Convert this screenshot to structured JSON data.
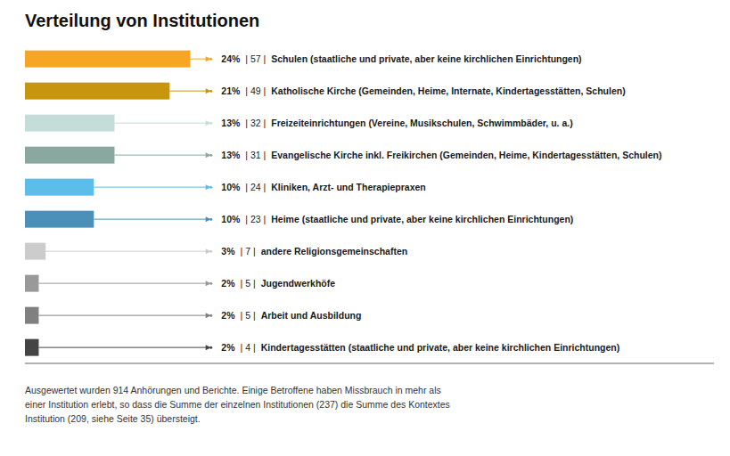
{
  "chart_data": {
    "type": "bar",
    "orientation": "horizontal",
    "title": "Verteilung von Institutionen",
    "categories": [
      "Schulen (staatliche und private, aber keine kirchlichen Einrichtungen)",
      "Katholische Kirche (Gemeinden, Heime, Internate, Kindertagesstätten, Schulen)",
      "Freizeiteinrichtungen (Vereine, Musikschulen, Schwimmbäder, u. a.)",
      "Evangelische Kirche inkl. Freikirchen (Gemeinden, Heime, Kindertagesstätten, Schulen)",
      "Kliniken, Arzt- und Therapiepraxen",
      "Heime (staatliche und private, aber keine kirchlichen Einrichtungen)",
      "andere Religionsgemeinschaften",
      "Jugendwerkhöfe",
      "Arbeit und Ausbildung",
      "Kindertagesstätten (staatliche und private, aber keine kirchlichen Einrichtungen)"
    ],
    "values": [
      24,
      21,
      13,
      13,
      10,
      10,
      3,
      2,
      2,
      2
    ],
    "value_labels": [
      "24%",
      "21%",
      "13%",
      "13%",
      "10%",
      "10%",
      "3%",
      "2%",
      "2%",
      "2%"
    ],
    "count_labels": [
      "| 57 |",
      "| 49 |",
      "| 32 |",
      "| 31 |",
      "| 24 |",
      "| 23 |",
      "| 7 |",
      "| 5 |",
      "| 5 |",
      "| 4 |"
    ],
    "colors": [
      "#F5A623",
      "#C8960C",
      "#C5DDD9",
      "#8BA8A0",
      "#5BBDE8",
      "#4A90B8",
      "#CCCCCC",
      "#999999",
      "#808080",
      "#444444"
    ],
    "xlim": [
      0,
      100
    ],
    "tick_labels": false,
    "data_labels": true,
    "footnote": "Ausgewertet wurden 914 Anhörungen und Berichte. Einige Betroffene haben Missbrauch in mehr als\neiner Institution erlebt, so dass die Summe der einzelnen Institutionen (237) die Summe des Kontextes\nInstitution (209, siehe Seite 35) übersteigt."
  }
}
